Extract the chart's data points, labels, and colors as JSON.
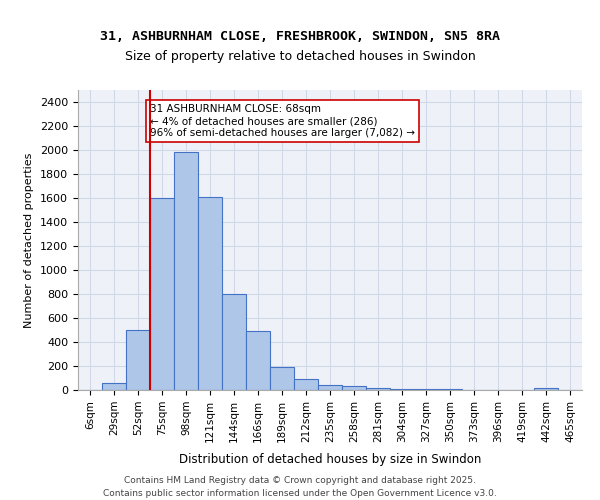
{
  "title_line1": "31, ASHBURNHAM CLOSE, FRESHBROOK, SWINDON, SN5 8RA",
  "title_line2": "Size of property relative to detached houses in Swindon",
  "xlabel": "Distribution of detached houses by size in Swindon",
  "ylabel": "Number of detached properties",
  "bar_labels": [
    "6sqm",
    "29sqm",
    "52sqm",
    "75sqm",
    "98sqm",
    "121sqm",
    "144sqm",
    "166sqm",
    "189sqm",
    "212sqm",
    "235sqm",
    "258sqm",
    "281sqm",
    "304sqm",
    "327sqm",
    "350sqm",
    "373sqm",
    "396sqm",
    "419sqm",
    "442sqm",
    "465sqm"
  ],
  "bar_values": [
    0,
    55,
    500,
    1600,
    1980,
    1610,
    800,
    490,
    195,
    90,
    45,
    30,
    18,
    10,
    5,
    5,
    2,
    0,
    0,
    15,
    0
  ],
  "bar_color": "#aec6e8",
  "bar_edge_color": "#4472c4",
  "vline_x": 2,
  "vline_color": "#cc0000",
  "annotation_text": "31 ASHBURNHAM CLOSE: 68sqm\n← 4% of detached houses are smaller (286)\n96% of semi-detached houses are larger (7,082) →",
  "annotation_box_edge": "#cc0000",
  "annotation_box_face": "#ffffff",
  "ylim": [
    0,
    2500
  ],
  "yticks": [
    0,
    200,
    400,
    600,
    800,
    1000,
    1200,
    1400,
    1600,
    1800,
    2000,
    2200,
    2400
  ],
  "grid_color": "#d0d8e8",
  "background_color": "#eef2f8",
  "footer_line1": "Contains HM Land Registry data © Crown copyright and database right 2025.",
  "footer_line2": "Contains public sector information licensed under the Open Government Licence v3.0.",
  "fig_bg": "#ffffff"
}
